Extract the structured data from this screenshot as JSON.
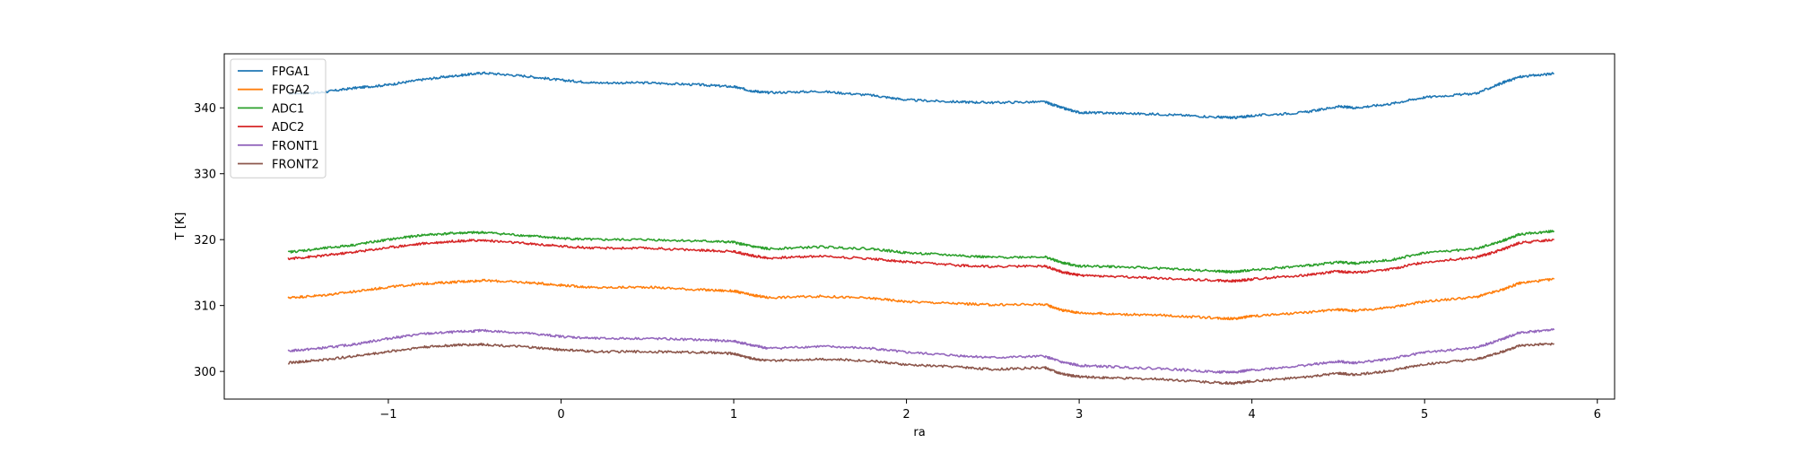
{
  "chart_data": {
    "type": "line",
    "xlabel": "ra",
    "ylabel": "T [K]",
    "xlim": [
      -1.95,
      6.1
    ],
    "ylim": [
      295.8,
      348.2
    ],
    "xticks": [
      -1,
      0,
      1,
      2,
      3,
      4,
      5,
      6
    ],
    "xtick_labels": [
      "−1",
      "0",
      "1",
      "2",
      "3",
      "4",
      "5",
      "6"
    ],
    "yticks": [
      300,
      310,
      320,
      330,
      340
    ],
    "ytick_labels": [
      "300",
      "310",
      "320",
      "330",
      "340"
    ],
    "grid": false,
    "legend": "top-left",
    "series": [
      {
        "name": "FPGA1",
        "color": "#1f77b4",
        "x": [
          -1.58,
          -1.4,
          -1.2,
          -1.0,
          -0.8,
          -0.6,
          -0.45,
          -0.2,
          0.0,
          0.2,
          0.5,
          0.8,
          1.0,
          1.1,
          1.2,
          1.5,
          1.8,
          2.0,
          2.3,
          2.5,
          2.8,
          2.9,
          3.0,
          3.2,
          3.5,
          3.8,
          3.9,
          4.0,
          4.3,
          4.5,
          4.6,
          4.8,
          5.0,
          5.3,
          5.45,
          5.55,
          5.75
        ],
        "y": [
          342.2,
          342.3,
          343.0,
          343.5,
          344.3,
          344.9,
          345.3,
          344.8,
          344.2,
          343.8,
          343.8,
          343.5,
          343.2,
          342.6,
          342.3,
          342.5,
          341.9,
          341.2,
          340.9,
          340.8,
          340.9,
          340.0,
          339.3,
          339.2,
          339.0,
          338.6,
          338.5,
          338.8,
          339.3,
          340.2,
          340.0,
          340.6,
          341.6,
          342.2,
          343.8,
          344.7,
          345.2
        ]
      },
      {
        "name": "FPGA2",
        "color": "#ff7f0e",
        "x": [
          -1.58,
          -1.4,
          -1.2,
          -1.0,
          -0.8,
          -0.6,
          -0.45,
          -0.2,
          0.0,
          0.2,
          0.5,
          0.8,
          1.0,
          1.1,
          1.2,
          1.5,
          1.8,
          2.0,
          2.3,
          2.5,
          2.8,
          2.9,
          3.0,
          3.2,
          3.5,
          3.8,
          3.9,
          4.0,
          4.3,
          4.5,
          4.6,
          4.8,
          5.0,
          5.3,
          5.45,
          5.55,
          5.75
        ],
        "y": [
          311.2,
          311.5,
          312.1,
          312.8,
          313.3,
          313.6,
          313.8,
          313.5,
          313.1,
          312.7,
          312.8,
          312.4,
          312.2,
          311.6,
          311.2,
          311.4,
          311.1,
          310.6,
          310.3,
          310.1,
          310.2,
          309.3,
          308.9,
          308.7,
          308.5,
          308.1,
          308.0,
          308.4,
          308.9,
          309.4,
          309.2,
          309.7,
          310.6,
          311.3,
          312.4,
          313.4,
          314.0
        ]
      },
      {
        "name": "ADC1",
        "color": "#2ca02c",
        "x": [
          -1.58,
          -1.4,
          -1.2,
          -1.0,
          -0.8,
          -0.6,
          -0.45,
          -0.2,
          0.0,
          0.2,
          0.5,
          0.8,
          1.0,
          1.1,
          1.2,
          1.5,
          1.8,
          2.0,
          2.3,
          2.5,
          2.8,
          2.9,
          3.0,
          3.2,
          3.5,
          3.8,
          3.9,
          4.0,
          4.3,
          4.5,
          4.6,
          4.8,
          5.0,
          5.3,
          5.45,
          5.55,
          5.75
        ],
        "y": [
          318.1,
          318.6,
          319.2,
          320.0,
          320.7,
          321.0,
          321.1,
          320.6,
          320.2,
          320.0,
          320.0,
          319.8,
          319.6,
          319.0,
          318.6,
          318.9,
          318.6,
          318.0,
          317.6,
          317.3,
          317.4,
          316.5,
          316.0,
          315.9,
          315.6,
          315.2,
          315.1,
          315.4,
          316.0,
          316.6,
          316.4,
          316.9,
          318.0,
          318.6,
          319.8,
          320.8,
          321.3
        ]
      },
      {
        "name": "ADC2",
        "color": "#d62728",
        "x": [
          -1.58,
          -1.4,
          -1.2,
          -1.0,
          -0.8,
          -0.6,
          -0.45,
          -0.2,
          0.0,
          0.2,
          0.5,
          0.8,
          1.0,
          1.1,
          1.2,
          1.5,
          1.8,
          2.0,
          2.3,
          2.5,
          2.8,
          2.9,
          3.0,
          3.2,
          3.5,
          3.8,
          3.9,
          4.0,
          4.3,
          4.5,
          4.6,
          4.8,
          5.0,
          5.3,
          5.45,
          5.55,
          5.75
        ],
        "y": [
          317.1,
          317.5,
          318.1,
          318.8,
          319.4,
          319.8,
          319.9,
          319.4,
          319.0,
          318.7,
          318.7,
          318.4,
          318.2,
          317.6,
          317.2,
          317.5,
          317.1,
          316.6,
          316.1,
          315.9,
          316.0,
          315.1,
          314.6,
          314.4,
          314.1,
          313.8,
          313.7,
          314.0,
          314.6,
          315.2,
          315.0,
          315.5,
          316.6,
          317.3,
          318.5,
          319.5,
          320.0
        ]
      },
      {
        "name": "FRONT1",
        "color": "#9467bd",
        "x": [
          -1.58,
          -1.4,
          -1.2,
          -1.0,
          -0.8,
          -0.6,
          -0.45,
          -0.2,
          0.0,
          0.2,
          0.5,
          0.8,
          1.0,
          1.1,
          1.2,
          1.5,
          1.8,
          2.0,
          2.3,
          2.5,
          2.8,
          2.9,
          3.0,
          3.2,
          3.5,
          3.8,
          3.9,
          4.0,
          4.3,
          4.5,
          4.6,
          4.8,
          5.0,
          5.3,
          5.45,
          5.55,
          5.75
        ],
        "y": [
          303.1,
          303.5,
          304.1,
          305.0,
          305.7,
          306.0,
          306.2,
          305.8,
          305.3,
          305.0,
          305.0,
          304.8,
          304.6,
          304.0,
          303.5,
          303.8,
          303.5,
          302.9,
          302.4,
          302.1,
          302.3,
          301.4,
          300.9,
          300.7,
          300.4,
          299.9,
          299.9,
          300.2,
          300.9,
          301.5,
          301.3,
          301.9,
          302.9,
          303.6,
          304.9,
          305.9,
          306.3
        ]
      },
      {
        "name": "FRONT2",
        "color": "#8c564b",
        "x": [
          -1.58,
          -1.4,
          -1.2,
          -1.0,
          -0.8,
          -0.6,
          -0.45,
          -0.2,
          0.0,
          0.2,
          0.5,
          0.8,
          1.0,
          1.1,
          1.2,
          1.5,
          1.8,
          2.0,
          2.3,
          2.5,
          2.8,
          2.9,
          3.0,
          3.2,
          3.5,
          3.8,
          3.9,
          4.0,
          4.3,
          4.5,
          4.6,
          4.8,
          5.0,
          5.3,
          5.45,
          5.55,
          5.75
        ],
        "y": [
          301.3,
          301.7,
          302.3,
          303.0,
          303.7,
          304.0,
          304.1,
          303.7,
          303.3,
          303.0,
          303.0,
          302.9,
          302.7,
          302.0,
          301.6,
          301.9,
          301.6,
          301.0,
          300.7,
          300.3,
          300.6,
          299.6,
          299.2,
          299.0,
          298.8,
          298.3,
          298.2,
          298.5,
          299.1,
          299.7,
          299.5,
          300.1,
          301.1,
          301.8,
          303.0,
          303.9,
          304.2
        ]
      }
    ]
  }
}
